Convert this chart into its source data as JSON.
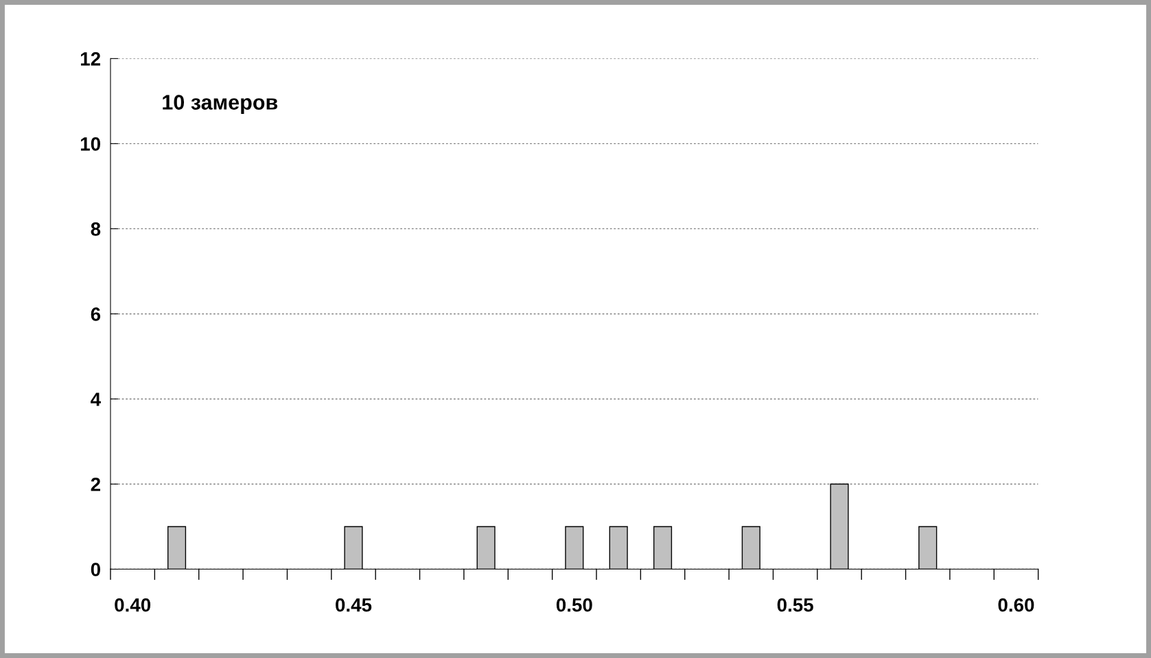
{
  "chart_data": {
    "type": "bar",
    "categories": [
      "0.40",
      null,
      null,
      null,
      null,
      "0.45",
      null,
      null,
      null,
      null,
      "0.50",
      null,
      null,
      null,
      null,
      "0.55",
      null,
      null,
      null,
      null,
      "0.60"
    ],
    "values": [
      0,
      1,
      0,
      0,
      0,
      1,
      0,
      0,
      1,
      0,
      1,
      1,
      1,
      0,
      1,
      0,
      2,
      0,
      1,
      0,
      0
    ],
    "color": "#c0c0c0",
    "ylim": [
      0,
      12
    ],
    "yticks": [
      0,
      2,
      4,
      6,
      8,
      10,
      12
    ],
    "grid": "y",
    "annotations": [
      "10 замеров"
    ]
  }
}
